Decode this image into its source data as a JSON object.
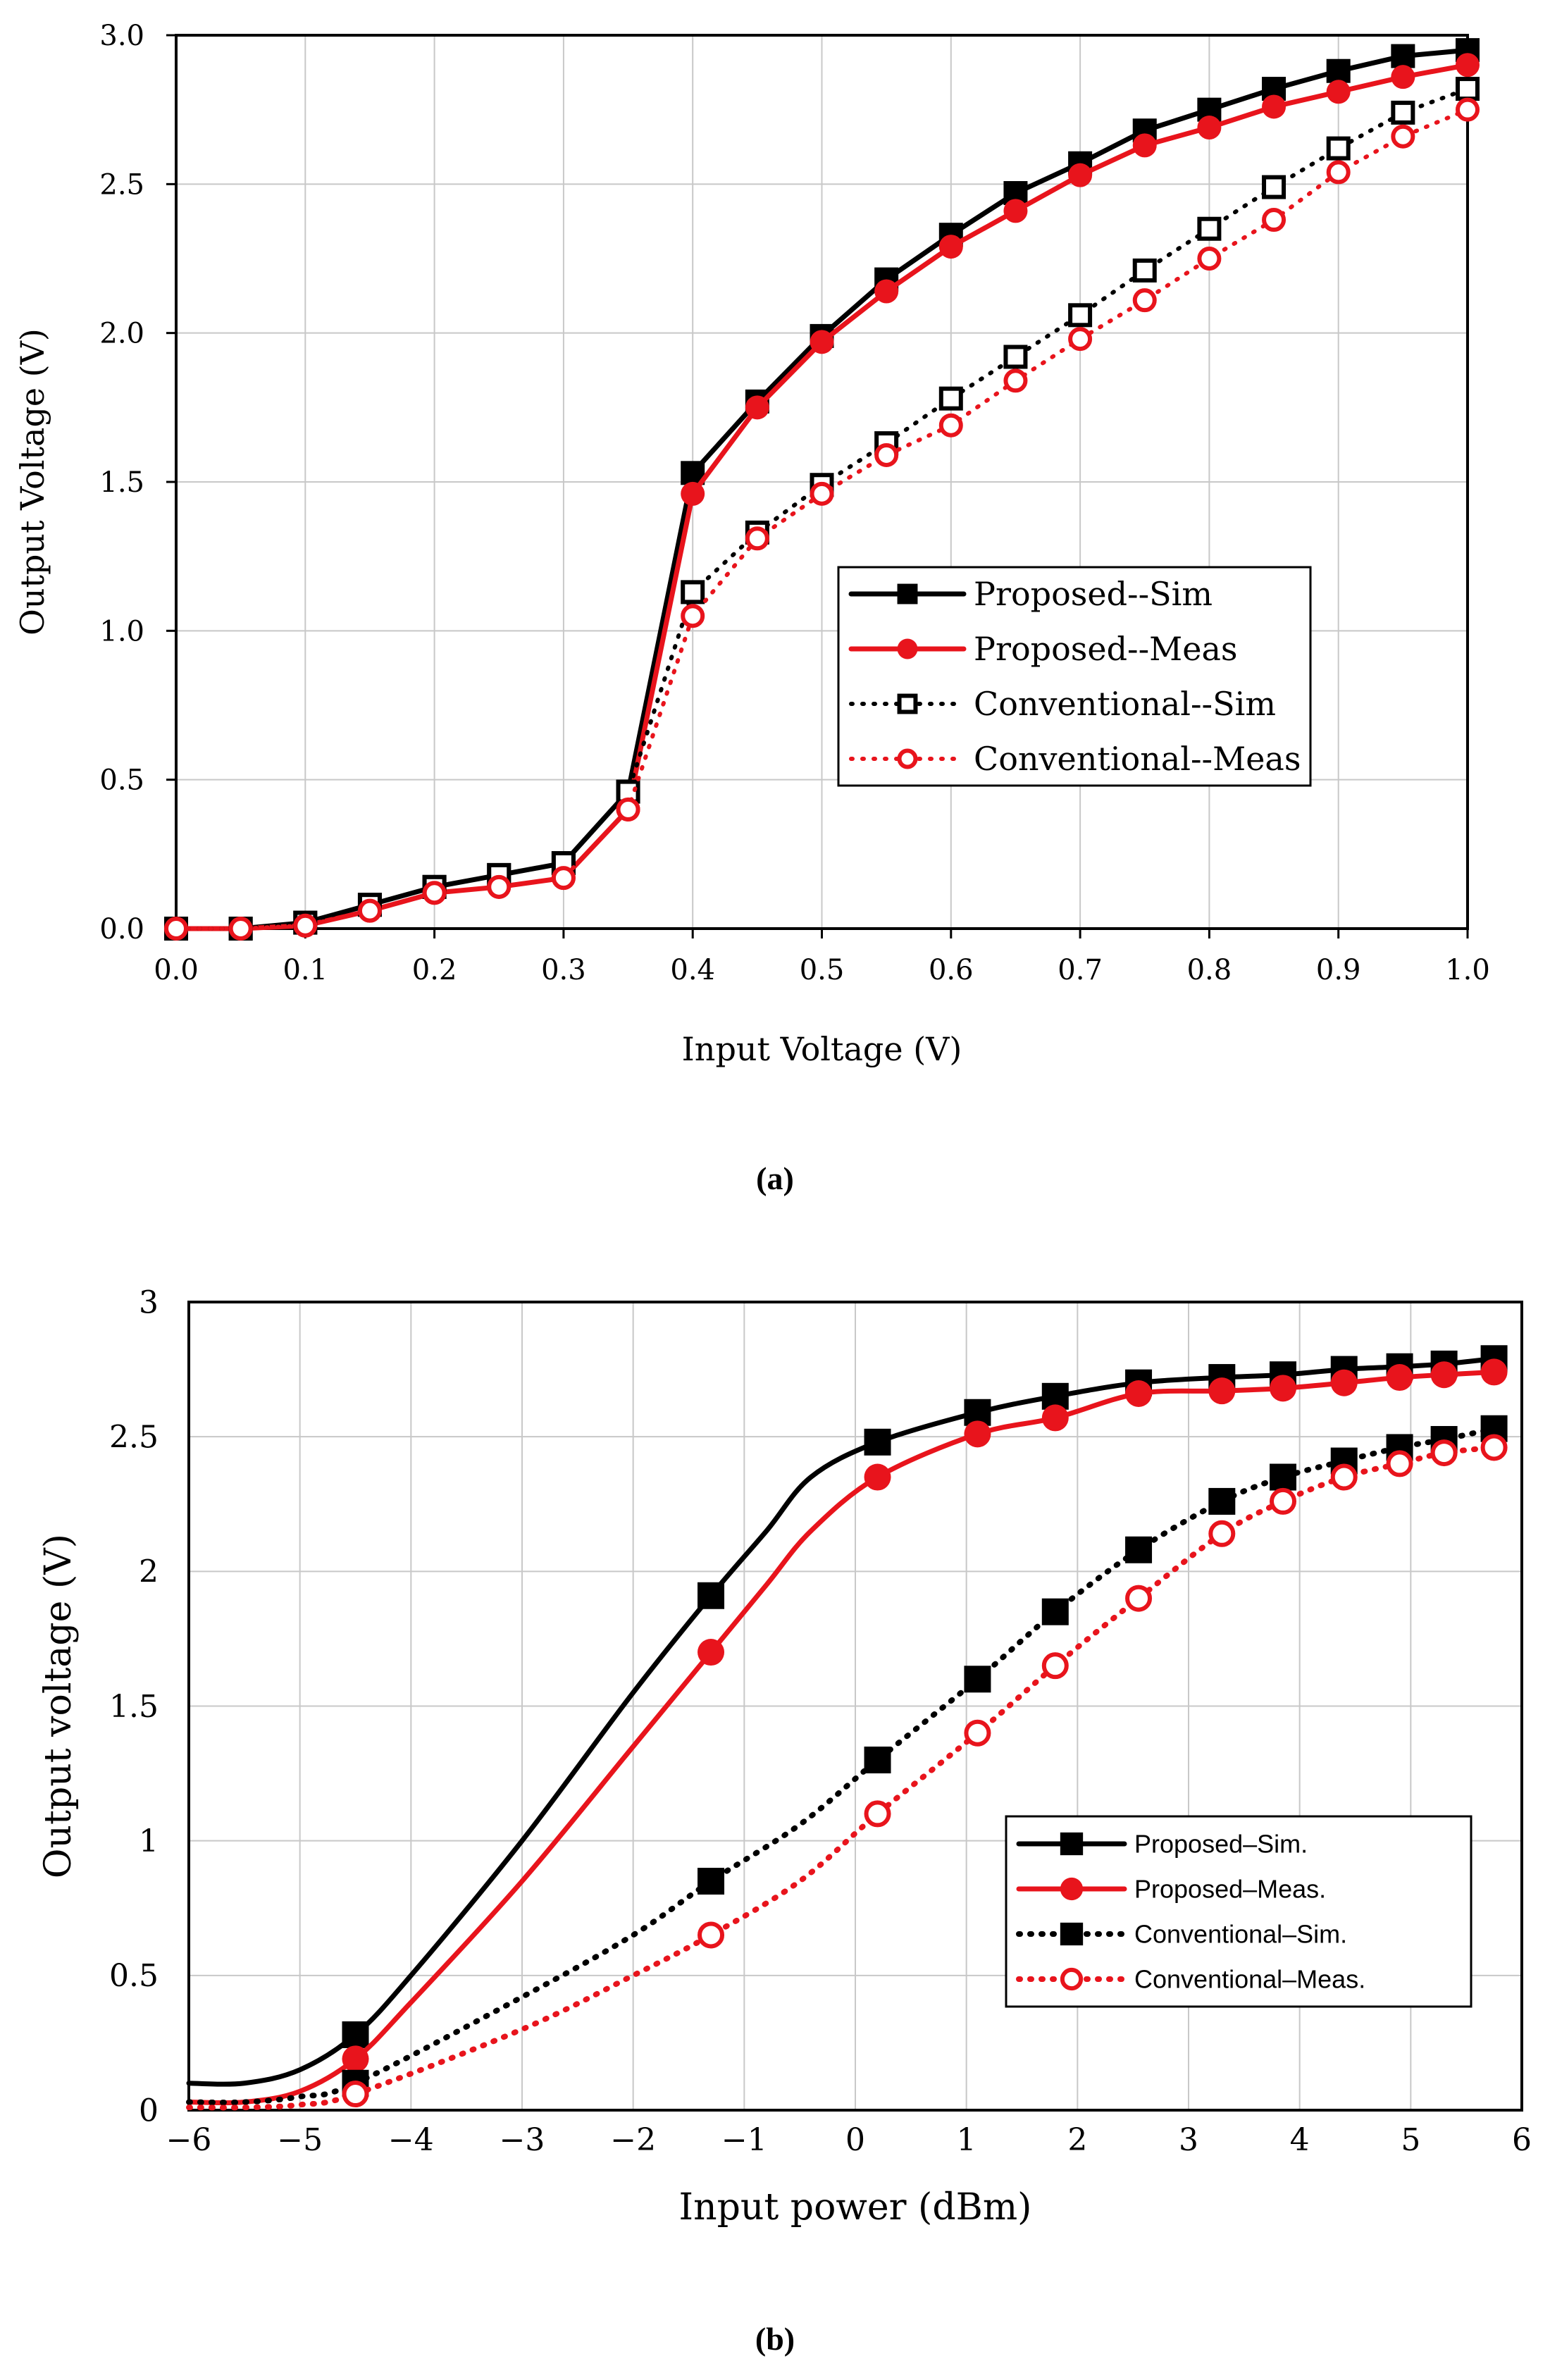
{
  "figure": {
    "panel_a_label": "(a)",
    "panel_b_label": "(b)"
  },
  "chart_data": [
    {
      "type": "line",
      "panel": "a",
      "title": "",
      "xlabel": "Input Voltage (V)",
      "ylabel": "Output Voltage (V)",
      "xlim": [
        0,
        1.0
      ],
      "ylim": [
        0,
        3.0
      ],
      "grid": true,
      "xticks": [
        0,
        0.1,
        0.2,
        0.3,
        0.4,
        0.5,
        0.6,
        0.7,
        0.8,
        0.9,
        1.0
      ],
      "xtick_labels": [
        "0.0",
        "0.1",
        "0.2",
        "0.3",
        "0.4",
        "0.5",
        "0.6",
        "0.7",
        "0.8",
        "0.9",
        "1.0"
      ],
      "yticks": [
        0,
        0.5,
        1.0,
        1.5,
        2.0,
        2.5,
        3.0
      ],
      "ytick_labels": [
        "0.0",
        "0.5",
        "1.0",
        "1.5",
        "2.0",
        "2.5",
        "3.0"
      ],
      "legend_position": "center-right",
      "series": [
        {
          "name": "Proposed--Sim",
          "color": "#000000",
          "line": "solid",
          "marker": "square-filled",
          "x": [
            0,
            0.05,
            0.1,
            0.15,
            0.2,
            0.25,
            0.3,
            0.35,
            0.4,
            0.45,
            0.5,
            0.55,
            0.6,
            0.65,
            0.7,
            0.75,
            0.8,
            0.85,
            0.9,
            0.95,
            1.0
          ],
          "y": [
            0.0,
            0.0,
            0.02,
            0.08,
            0.14,
            0.18,
            0.22,
            0.46,
            1.53,
            1.77,
            1.99,
            2.18,
            2.33,
            2.47,
            2.57,
            2.68,
            2.75,
            2.82,
            2.88,
            2.93,
            2.95
          ]
        },
        {
          "name": "Proposed--Meas",
          "color": "#e8141c",
          "line": "solid",
          "marker": "circle-filled",
          "x": [
            0,
            0.05,
            0.1,
            0.15,
            0.2,
            0.25,
            0.3,
            0.35,
            0.4,
            0.45,
            0.5,
            0.55,
            0.6,
            0.65,
            0.7,
            0.75,
            0.8,
            0.85,
            0.9,
            0.95,
            1.0
          ],
          "y": [
            0.0,
            0.0,
            0.01,
            0.06,
            0.12,
            0.14,
            0.17,
            0.4,
            1.46,
            1.75,
            1.97,
            2.14,
            2.29,
            2.41,
            2.53,
            2.63,
            2.69,
            2.76,
            2.81,
            2.86,
            2.9
          ]
        },
        {
          "name": "Conventional--Sim",
          "color": "#000000",
          "line": "dotted",
          "marker": "square-open",
          "x": [
            0,
            0.05,
            0.1,
            0.15,
            0.2,
            0.25,
            0.3,
            0.35,
            0.4,
            0.45,
            0.5,
            0.55,
            0.6,
            0.65,
            0.7,
            0.75,
            0.8,
            0.85,
            0.9,
            0.95,
            1.0
          ],
          "y": [
            0.0,
            0.0,
            0.02,
            0.08,
            0.14,
            0.18,
            0.22,
            0.46,
            1.13,
            1.33,
            1.49,
            1.63,
            1.78,
            1.92,
            2.06,
            2.21,
            2.35,
            2.49,
            2.62,
            2.74,
            2.82
          ]
        },
        {
          "name": "Conventional--Meas",
          "color": "#e8141c",
          "line": "dotted",
          "marker": "circle-open",
          "x": [
            0,
            0.05,
            0.1,
            0.15,
            0.2,
            0.25,
            0.3,
            0.35,
            0.4,
            0.45,
            0.5,
            0.55,
            0.6,
            0.65,
            0.7,
            0.75,
            0.8,
            0.85,
            0.9,
            0.95,
            1.0
          ],
          "y": [
            0.0,
            0.0,
            0.01,
            0.06,
            0.12,
            0.14,
            0.17,
            0.4,
            1.05,
            1.31,
            1.46,
            1.59,
            1.69,
            1.84,
            1.98,
            2.11,
            2.25,
            2.38,
            2.54,
            2.66,
            2.75
          ]
        }
      ]
    },
    {
      "type": "line",
      "panel": "b",
      "title": "",
      "xlabel": "Input power (dBm)",
      "ylabel": "Output voltage (V)",
      "xlim": [
        -6,
        6
      ],
      "ylim": [
        0,
        3
      ],
      "grid": true,
      "xticks": [
        -6,
        -5,
        -4,
        -3,
        -2,
        -1,
        0,
        1,
        2,
        3,
        4,
        5,
        6
      ],
      "xtick_labels": [
        "−6",
        "−5",
        "−4",
        "−3",
        "−2",
        "−1",
        "0",
        "1",
        "2",
        "3",
        "4",
        "5",
        "6"
      ],
      "yticks": [
        0,
        0.5,
        1,
        1.5,
        2,
        2.5,
        3
      ],
      "ytick_labels": [
        "0",
        "0.5",
        "1",
        "1.5",
        "2",
        "2.5",
        "3"
      ],
      "legend_position": "center-right",
      "series": [
        {
          "name": "Proposed–Sim.",
          "color": "#000000",
          "line": "solid",
          "marker": "square-filled",
          "curve_x": [
            -6,
            -5.5,
            -5,
            -4.5,
            -4,
            -3,
            -2,
            -1.3,
            -0.8,
            -0.4,
            0.2,
            1.1,
            1.8,
            2.55,
            3.3,
            3.85,
            4.4,
            4.9,
            5.3,
            5.75
          ],
          "curve_y": [
            0.1,
            0.1,
            0.15,
            0.28,
            0.5,
            1.0,
            1.55,
            1.91,
            2.15,
            2.35,
            2.48,
            2.59,
            2.65,
            2.7,
            2.72,
            2.73,
            2.75,
            2.76,
            2.77,
            2.79
          ],
          "x": [
            -4.5,
            -1.3,
            0.2,
            1.1,
            1.8,
            2.55,
            3.3,
            3.85,
            4.4,
            4.9,
            5.3,
            5.75
          ],
          "y": [
            0.28,
            1.91,
            2.48,
            2.59,
            2.65,
            2.7,
            2.72,
            2.73,
            2.75,
            2.76,
            2.77,
            2.79
          ]
        },
        {
          "name": "Proposed–Meas.",
          "color": "#e8141c",
          "line": "solid",
          "marker": "circle-filled",
          "curve_x": [
            -6,
            -5.5,
            -5,
            -4.5,
            -4,
            -3,
            -2,
            -1.3,
            -0.8,
            -0.4,
            0.2,
            1.1,
            1.8,
            2.55,
            3.3,
            3.85,
            4.4,
            4.9,
            5.3,
            5.75
          ],
          "curve_y": [
            0.03,
            0.03,
            0.07,
            0.19,
            0.4,
            0.85,
            1.35,
            1.7,
            1.95,
            2.15,
            2.35,
            2.51,
            2.57,
            2.66,
            2.67,
            2.68,
            2.7,
            2.72,
            2.73,
            2.74
          ],
          "x": [
            -4.5,
            -1.3,
            0.2,
            1.1,
            1.8,
            2.55,
            3.3,
            3.85,
            4.4,
            4.9,
            5.3,
            5.75
          ],
          "y": [
            0.19,
            1.7,
            2.35,
            2.51,
            2.57,
            2.66,
            2.67,
            2.68,
            2.7,
            2.72,
            2.73,
            2.74
          ]
        },
        {
          "name": "Conventional–Sim.",
          "color": "#000000",
          "line": "dotted",
          "marker": "square-filled",
          "curve_x": [
            -6,
            -5.5,
            -5,
            -4.5,
            -3,
            -2,
            -1.3,
            -0.5,
            0.2,
            1.1,
            1.8,
            2.55,
            3.3,
            3.85,
            4.4,
            4.9,
            5.3,
            5.75
          ],
          "curve_y": [
            0.03,
            0.03,
            0.05,
            0.1,
            0.42,
            0.65,
            0.85,
            1.06,
            1.3,
            1.6,
            1.85,
            2.08,
            2.26,
            2.35,
            2.41,
            2.46,
            2.49,
            2.53
          ],
          "x": [
            -4.5,
            -1.3,
            0.2,
            1.1,
            1.8,
            2.55,
            3.3,
            3.85,
            4.4,
            4.9,
            5.3,
            5.75
          ],
          "y": [
            0.1,
            0.85,
            1.3,
            1.6,
            1.85,
            2.08,
            2.26,
            2.35,
            2.41,
            2.46,
            2.49,
            2.53
          ]
        },
        {
          "name": "Conventional–Meas.",
          "color": "#e8141c",
          "line": "dotted",
          "marker": "circle-open",
          "curve_x": [
            -6,
            -5.5,
            -5,
            -4.5,
            -3,
            -2,
            -1.3,
            -0.5,
            0.2,
            1.1,
            1.8,
            2.55,
            3.3,
            3.85,
            4.4,
            4.9,
            5.3,
            5.75
          ],
          "curve_y": [
            0.01,
            0.01,
            0.02,
            0.06,
            0.3,
            0.5,
            0.65,
            0.85,
            1.1,
            1.4,
            1.65,
            1.9,
            2.14,
            2.26,
            2.35,
            2.4,
            2.44,
            2.46
          ],
          "x": [
            -4.5,
            -1.3,
            0.2,
            1.1,
            1.8,
            2.55,
            3.3,
            3.85,
            4.4,
            4.9,
            5.3,
            5.75
          ],
          "y": [
            0.06,
            0.65,
            1.1,
            1.4,
            1.65,
            1.9,
            2.14,
            2.26,
            2.35,
            2.4,
            2.44,
            2.46
          ]
        }
      ]
    }
  ]
}
